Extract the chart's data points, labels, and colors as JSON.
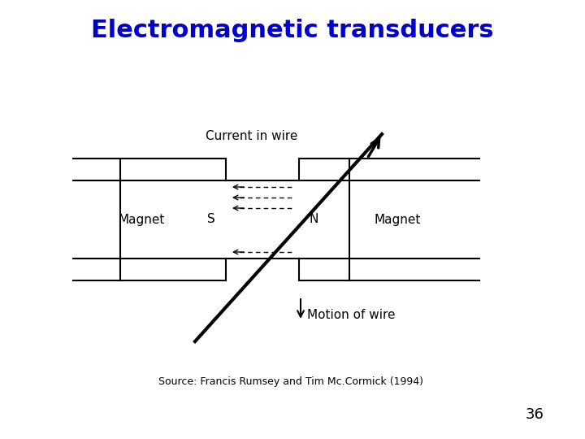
{
  "title": "Electromagnetic transducers",
  "title_color": "#0000CC",
  "title_fontsize": 22,
  "title_fontstyle": "bold",
  "source_text": "Source: Francis Rumsey and Tim Mc.Cormick (1994)",
  "source_fontsize": 9,
  "page_number": "36",
  "page_fontsize": 13,
  "bg_color": "#ffffff",
  "lw": 1.5
}
